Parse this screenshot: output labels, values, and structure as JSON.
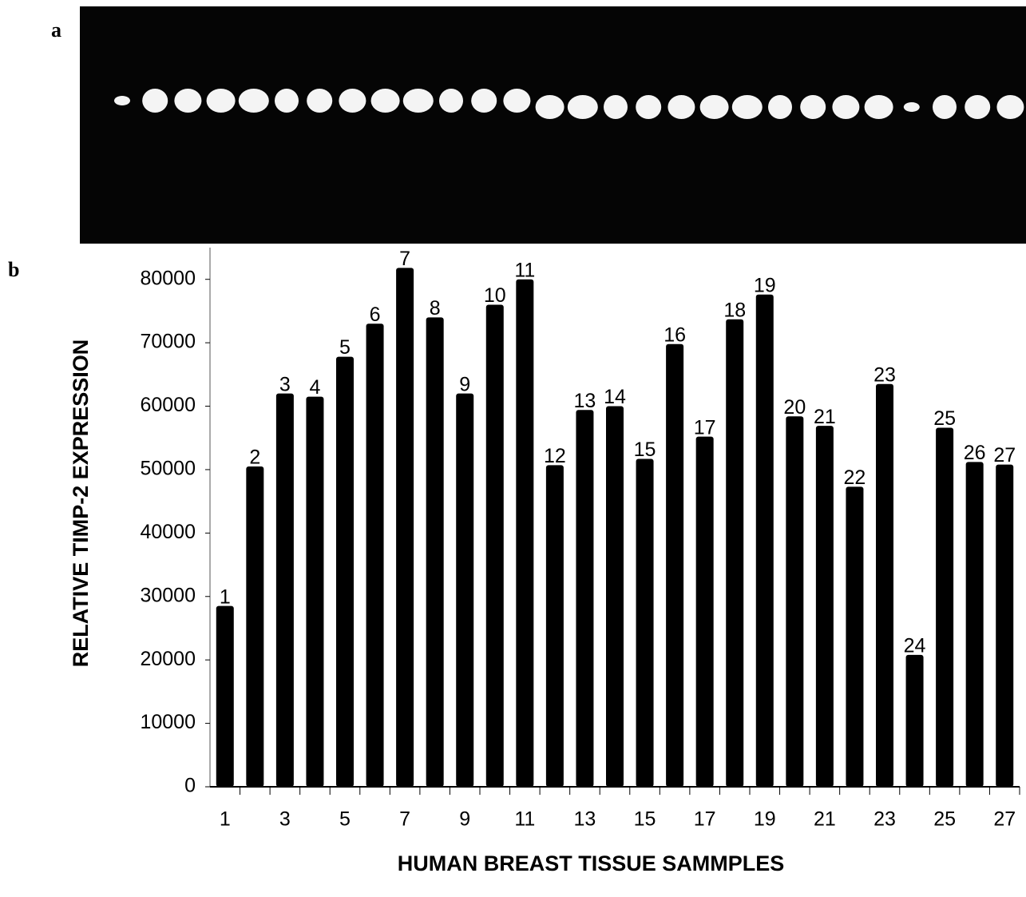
{
  "panels": {
    "a": "a",
    "b": "b"
  },
  "chart_data": {
    "type": "bar",
    "y_label": "RELATIVE  TIMP-2  EXPRESSION",
    "x_label": "HUMAN BREAST TISSUE SAMMPLES",
    "categories": [
      "1",
      null,
      "3",
      null,
      "5",
      null,
      "7",
      null,
      "9",
      null,
      "11",
      null,
      "13",
      null,
      "15",
      null,
      "17",
      null,
      "19",
      null,
      "21",
      null,
      "23",
      null,
      "25",
      null,
      "27"
    ],
    "bar_labels": [
      "1",
      "2",
      "3",
      "4",
      "5",
      "6",
      "7",
      "8",
      "9",
      "10",
      "11",
      "12",
      "13",
      "14",
      "15",
      "16",
      "17",
      "18",
      "19",
      "20",
      "21",
      "22",
      "23",
      "24",
      "25",
      "26",
      "27"
    ],
    "values": [
      28500,
      50500,
      62000,
      61500,
      67800,
      73000,
      81800,
      74000,
      62000,
      76000,
      80000,
      50700,
      59400,
      60000,
      51700,
      69800,
      55200,
      73700,
      77600,
      58400,
      56900,
      47300,
      63500,
      20800,
      56600,
      51200,
      50800
    ],
    "color": "#000000",
    "ylim": [
      0,
      85000
    ],
    "yticks": [
      0,
      10000,
      20000,
      30000,
      40000,
      50000,
      60000,
      70000,
      80000
    ]
  }
}
